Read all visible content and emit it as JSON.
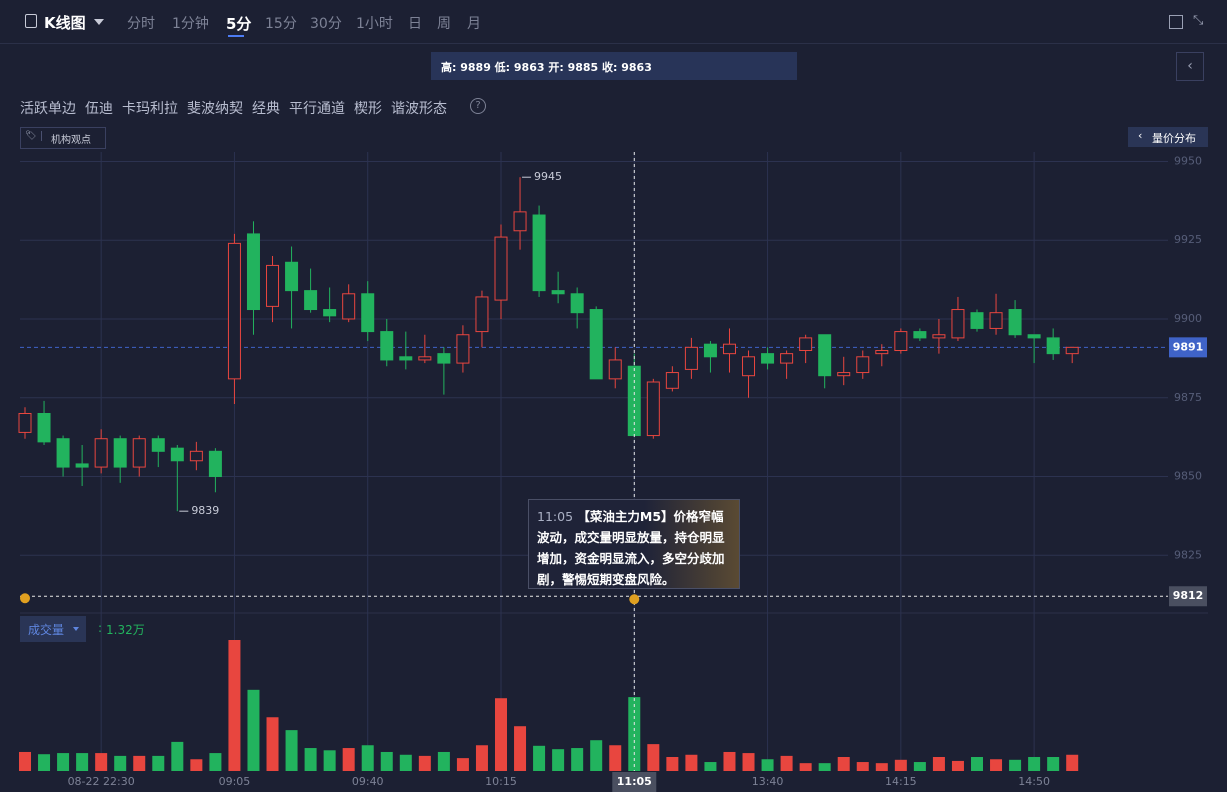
{
  "toolbar": {
    "chart_name": "K线图",
    "periods": [
      "分时",
      "1分钟",
      "5分",
      "15分",
      "30分",
      "1小时",
      "日",
      "周",
      "月"
    ],
    "active_period": "5分"
  },
  "ohlc_info": "高: 9889 低: 9863 开: 9885 收: 9863",
  "tools": [
    "活跃单边",
    "伍迪",
    "卡玛利拉",
    "斐波纳契",
    "经典",
    "平行通道",
    "楔形",
    "谐波形态"
  ],
  "opinion_button": "机构观点",
  "volume_profile_button": "量价分布",
  "tooltip": {
    "time": "11:05",
    "text": "【菜油主力M5】价格窄幅波动，成交量明显放量，持仓明显增加，资金明显流入，多空分歧加剧，警惕短期变盘风险。"
  },
  "chart_data": [
    {
      "type": "candlestick",
      "categories": [
        null,
        null,
        null,
        null,
        "08-22 22:30",
        null,
        null,
        null,
        null,
        null,
        null,
        "09:05",
        null,
        null,
        null,
        null,
        null,
        null,
        "09:40",
        null,
        null,
        null,
        null,
        null,
        null,
        "10:15",
        null,
        null,
        null,
        null,
        null,
        null,
        "11:05",
        null,
        null,
        null,
        null,
        null,
        null,
        "13:40",
        null,
        null,
        null,
        null,
        null,
        null,
        "14:15",
        null,
        null,
        null,
        null,
        null,
        null,
        "14:50",
        null,
        null
      ],
      "open": [
        9864,
        9870,
        9862,
        9854,
        9853,
        9862,
        9853,
        9862,
        9859,
        9855,
        9858,
        9881,
        9927,
        9904,
        9918,
        9909,
        9903,
        9900,
        9908,
        9896,
        9888,
        9887,
        9889,
        9886,
        9896,
        9906,
        9928,
        9933,
        9909,
        9908,
        9903,
        9881,
        9885,
        9863,
        9878,
        9884,
        9892,
        9889,
        9882,
        9889,
        9886,
        9890,
        9895,
        9882,
        9883,
        9889,
        9890,
        9896,
        9894,
        9894,
        9902,
        9897,
        9903,
        9895,
        9894,
        9889
      ],
      "high": [
        9872,
        9874,
        9863,
        9860,
        9865,
        9863,
        9863,
        9863,
        9860,
        9861,
        9859,
        9927,
        9931,
        9920,
        9923,
        9916,
        9910,
        9911,
        9912,
        9900,
        9896,
        9895,
        9891,
        9898,
        9909,
        9930,
        9945,
        9936,
        9915,
        9910,
        9904,
        9891,
        9889,
        9881,
        9885,
        9894,
        9893,
        9897,
        9890,
        9891,
        9890,
        9895,
        9895,
        9888,
        9890,
        9892,
        9897,
        9897,
        9900,
        9907,
        9903,
        9908,
        9906,
        9895,
        9897,
        9891
      ],
      "low": [
        9862,
        9860,
        9850,
        9847,
        9851,
        9848,
        9850,
        9853,
        9839,
        9852,
        9845,
        9873,
        9895,
        9899,
        9897,
        9902,
        9899,
        9899,
        9893,
        9885,
        9884,
        9886,
        9876,
        9883,
        9891,
        9900,
        9922,
        9907,
        9905,
        9897,
        9881,
        9878,
        9863,
        9862,
        9877,
        9881,
        9883,
        9883,
        9875,
        9884,
        9881,
        9886,
        9878,
        9879,
        9881,
        9885,
        9889,
        9893,
        9889,
        9893,
        9896,
        9895,
        9894,
        9886,
        9887,
        9886
      ],
      "close": [
        9870,
        9861,
        9853,
        9853,
        9862,
        9853,
        9862,
        9858,
        9855,
        9858,
        9850,
        9924,
        9903,
        9917,
        9909,
        9903,
        9901,
        9908,
        9896,
        9887,
        9887,
        9888,
        9886,
        9895,
        9907,
        9926,
        9934,
        9909,
        9908,
        9902,
        9881,
        9887,
        9863,
        9880,
        9883,
        9891,
        9888,
        9892,
        9888,
        9886,
        9889,
        9894,
        9882,
        9883,
        9888,
        9890,
        9896,
        9894,
        9895,
        9903,
        9897,
        9902,
        9895,
        9894,
        9889,
        9891
      ],
      "up_color": "#e8463f",
      "down_color": "#22b35e",
      "ylim": [
        9807,
        9953
      ],
      "yticks": [
        9825,
        9850,
        9875,
        9900,
        9925,
        9950
      ],
      "grid": true,
      "last_price": 9891,
      "crosshair_price": 9812,
      "max_label": 9945,
      "min_label": 9839
    },
    {
      "type": "bar",
      "name": "成交量",
      "readout": "1.32万",
      "values": [
        0.34,
        0.3,
        0.32,
        0.32,
        0.32,
        0.27,
        0.27,
        0.27,
        0.52,
        0.21,
        0.32,
        2.34,
        1.45,
        0.96,
        0.73,
        0.41,
        0.37,
        0.41,
        0.46,
        0.34,
        0.29,
        0.27,
        0.34,
        0.23,
        0.46,
        1.3,
        0.8,
        0.45,
        0.39,
        0.41,
        0.55,
        0.46,
        1.32,
        0.48,
        0.25,
        0.29,
        0.16,
        0.34,
        0.32,
        0.21,
        0.27,
        0.14,
        0.14,
        0.25,
        0.16,
        0.14,
        0.2,
        0.16,
        0.25,
        0.18,
        0.25,
        0.21,
        0.2,
        0.25,
        0.25,
        0.29
      ]
    }
  ]
}
